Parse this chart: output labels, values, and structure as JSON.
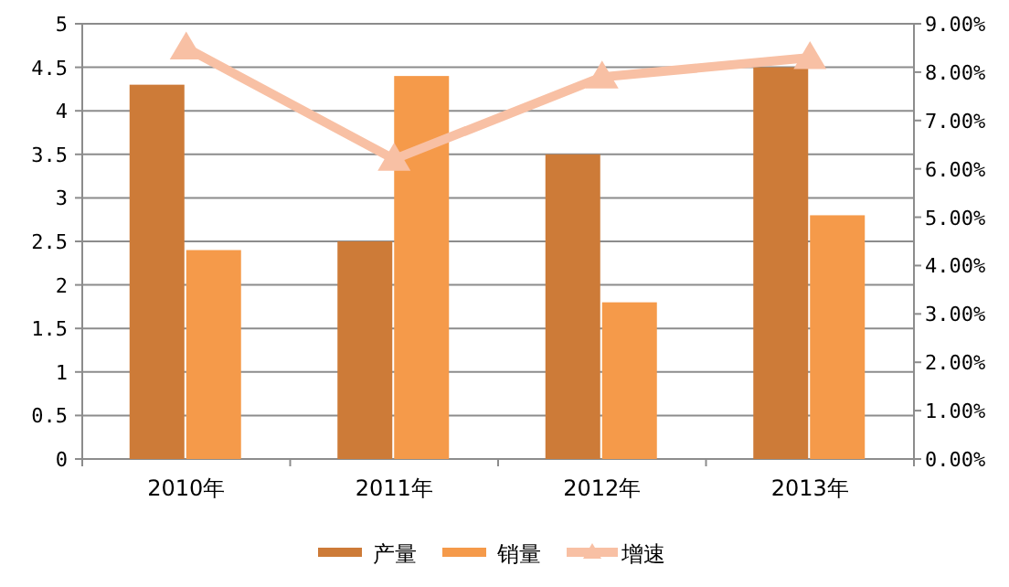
{
  "chart_data": {
    "type": "bar",
    "categories": [
      "2010年",
      "2011年",
      "2012年",
      "2013年"
    ],
    "series": [
      {
        "name": "产量",
        "color": "#cd7b38",
        "values": [
          4.3,
          2.5,
          3.5,
          4.5
        ]
      },
      {
        "name": "销量",
        "color": "#f59a4a",
        "values": [
          2.4,
          4.4,
          1.8,
          2.8
        ]
      },
      {
        "name": "增速",
        "type": "line",
        "axis": "y2",
        "color": "#f8c0a4",
        "marker": "triangle",
        "values": [
          8.5,
          6.2,
          7.9,
          8.3
        ]
      }
    ],
    "ylim": [
      0,
      5
    ],
    "yticks": [
      0,
      0.5,
      1,
      1.5,
      2,
      2.5,
      3,
      3.5,
      4,
      4.5,
      5
    ],
    "y2lim": [
      0,
      9
    ],
    "y2ticks": [
      {
        "value": 0,
        "label": "0.00%"
      },
      {
        "value": 1,
        "label": "1.00%"
      },
      {
        "value": 2,
        "label": "2.00%"
      },
      {
        "value": 3,
        "label": "3.00%"
      },
      {
        "value": 4,
        "label": "4.00%"
      },
      {
        "value": 5,
        "label": "5.00%"
      },
      {
        "value": 6,
        "label": "6.00%"
      },
      {
        "value": 7,
        "label": "7.00%"
      },
      {
        "value": 8,
        "label": "8.00%"
      },
      {
        "value": 9,
        "label": "9.00%"
      }
    ],
    "grid": "y",
    "legend": "bottom"
  }
}
